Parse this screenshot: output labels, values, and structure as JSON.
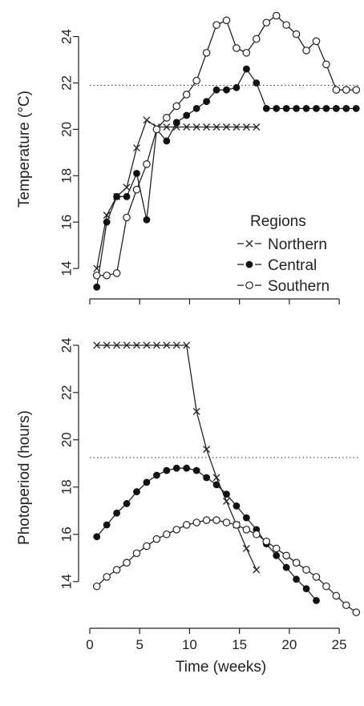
{
  "chart_data": [
    {
      "type": "line",
      "xlabel": "",
      "ylabel": "Temperature (°C)",
      "xlim": [
        0,
        27
      ],
      "ylim": [
        13,
        25.3
      ],
      "yticks": [
        14,
        16,
        18,
        20,
        22,
        24
      ],
      "xticks": [
        0,
        5,
        10,
        15,
        20,
        25
      ],
      "show_xtick_labels": false,
      "reference_line": 21.9,
      "legend": {
        "title": "Regions",
        "placement": "right-middle"
      },
      "series": [
        {
          "name": "Northern",
          "marker": "x",
          "x": [
            0.7,
            1.7,
            2.7,
            3.7,
            4.7,
            5.7,
            6.7,
            7.7,
            8.7,
            9.7,
            10.7,
            11.7,
            12.7,
            13.7,
            14.7,
            15.7,
            16.7
          ],
          "values": [
            14.0,
            16.3,
            17.1,
            17.5,
            19.2,
            20.4,
            20.1,
            20.1,
            20.1,
            20.1,
            20.1,
            20.1,
            20.1,
            20.1,
            20.1,
            20.1,
            20.1
          ]
        },
        {
          "name": "Central",
          "marker": "filled-circle",
          "x": [
            0.7,
            1.7,
            2.7,
            3.7,
            4.7,
            5.7,
            6.7,
            7.7,
            8.7,
            9.7,
            10.7,
            11.7,
            12.7,
            13.7,
            14.7,
            15.7,
            16.7,
            17.7,
            18.7,
            19.7,
            20.7,
            21.7,
            22.7,
            23.7,
            24.7,
            25.7,
            26.7
          ],
          "values": [
            13.2,
            16.0,
            17.1,
            17.1,
            18.1,
            16.1,
            20.0,
            19.5,
            20.3,
            20.6,
            20.9,
            21.2,
            21.7,
            21.7,
            21.8,
            22.6,
            22.0,
            20.9,
            20.9,
            20.9,
            20.9,
            20.9,
            20.9,
            20.9,
            20.9,
            20.9,
            20.9
          ]
        },
        {
          "name": "Southern",
          "marker": "open-circle",
          "x": [
            0.7,
            1.7,
            2.7,
            3.7,
            4.7,
            5.7,
            6.7,
            7.7,
            8.7,
            9.7,
            10.7,
            11.7,
            12.7,
            13.7,
            14.7,
            15.7,
            16.7,
            17.7,
            18.7,
            19.7,
            20.7,
            21.7,
            22.7,
            23.7,
            24.7,
            25.7,
            26.7
          ],
          "values": [
            13.7,
            13.7,
            13.8,
            16.2,
            17.4,
            18.5,
            20.0,
            20.5,
            21.0,
            21.5,
            22.1,
            23.3,
            24.5,
            24.7,
            23.5,
            23.3,
            23.9,
            24.6,
            24.9,
            24.5,
            24.1,
            23.4,
            23.8,
            22.8,
            21.7,
            21.7,
            21.7
          ]
        }
      ]
    },
    {
      "type": "line",
      "xlabel": "Time (weeks)",
      "ylabel": "Photoperiod (hours)",
      "xlim": [
        0,
        27
      ],
      "ylim": [
        12.5,
        24.3
      ],
      "yticks": [
        14,
        16,
        18,
        20,
        22,
        24
      ],
      "xticks": [
        0,
        5,
        10,
        15,
        20,
        25
      ],
      "xtick_labels": [
        "0",
        "5",
        "10",
        "15",
        "20",
        "25"
      ],
      "show_xtick_labels": true,
      "reference_line": 19.25,
      "series": [
        {
          "name": "Northern",
          "marker": "x",
          "x": [
            0.7,
            1.7,
            2.7,
            3.7,
            4.7,
            5.7,
            6.7,
            7.7,
            8.7,
            9.7,
            10.7,
            11.7,
            12.7,
            13.7,
            14.7,
            15.7,
            16.7
          ],
          "values": [
            24.0,
            24.0,
            24.0,
            24.0,
            24.0,
            24.0,
            24.0,
            24.0,
            24.0,
            24.0,
            21.2,
            19.6,
            18.4,
            17.4,
            16.4,
            15.4,
            14.5
          ]
        },
        {
          "name": "Central",
          "marker": "filled-circle",
          "x": [
            0.7,
            1.7,
            2.7,
            3.7,
            4.7,
            5.7,
            6.7,
            7.7,
            8.7,
            9.7,
            10.7,
            11.7,
            12.7,
            13.7,
            14.7,
            15.7,
            16.7,
            17.7,
            18.7,
            19.7,
            20.7,
            21.7,
            22.7
          ],
          "values": [
            15.9,
            16.4,
            16.9,
            17.3,
            17.8,
            18.2,
            18.5,
            18.7,
            18.8,
            18.8,
            18.7,
            18.4,
            18.1,
            17.7,
            17.2,
            16.7,
            16.2,
            15.6,
            15.1,
            14.6,
            14.1,
            13.7,
            13.2
          ]
        },
        {
          "name": "Southern",
          "marker": "open-circle",
          "x": [
            0.7,
            1.7,
            2.7,
            3.7,
            4.7,
            5.7,
            6.7,
            7.7,
            8.7,
            9.7,
            10.7,
            11.7,
            12.7,
            13.7,
            14.7,
            15.7,
            16.7,
            17.7,
            18.7,
            19.7,
            20.7,
            21.7,
            22.7,
            23.7,
            24.7,
            25.7,
            26.7
          ],
          "values": [
            13.8,
            14.2,
            14.5,
            14.8,
            15.2,
            15.5,
            15.8,
            16.0,
            16.2,
            16.4,
            16.5,
            16.6,
            16.6,
            16.5,
            16.4,
            16.2,
            16.0,
            15.7,
            15.4,
            15.1,
            14.8,
            14.5,
            14.2,
            13.8,
            13.4,
            13.0,
            12.7
          ]
        }
      ]
    }
  ]
}
